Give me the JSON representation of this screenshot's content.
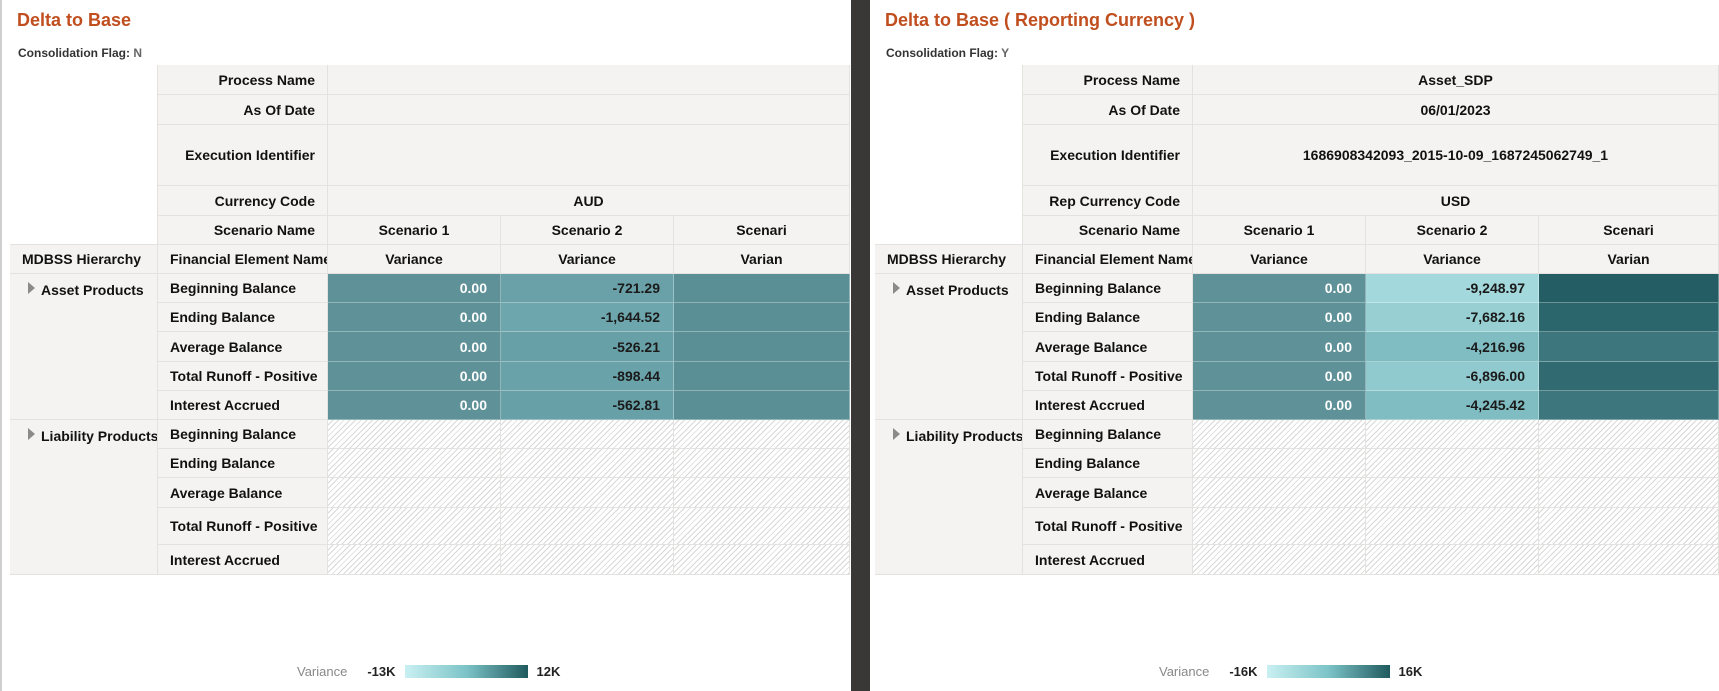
{
  "panels": [
    {
      "title": "Delta to Base",
      "flag_label": "Consolidation Flag:",
      "flag_value": "N",
      "process_name_label": "Process Name",
      "process_name": "",
      "as_of_date_label": "As Of Date",
      "as_of_date": "",
      "execution_identifier_label": "Execution Identifier",
      "execution_identifier": "",
      "currency_label": "Currency Code",
      "currency": "AUD",
      "scenario_name_label": "Scenario Name",
      "scenarios": [
        "Scenario 1",
        "Scenario 2",
        "Scenari"
      ],
      "hierarchy_header": "MDBSS Hierarchy",
      "financial_element_header": "Financial Element Name",
      "measure_headers": [
        "Variance",
        "Variance",
        "Varian"
      ],
      "groups": [
        {
          "name": "Asset Products",
          "rows": [
            {
              "element": "Beginning Balance",
              "values": [
                "0.00",
                "-721.29",
                ""
              ],
              "colors": [
                "#5e9198",
                "#6aa1a8",
                "#5a8f96"
              ]
            },
            {
              "element": "Ending Balance",
              "values": [
                "0.00",
                "-1,644.52",
                ""
              ],
              "colors": [
                "#5e9198",
                "#6ea6ad",
                "#5a8f96"
              ]
            },
            {
              "element": "Average Balance",
              "values": [
                "0.00",
                "-526.21",
                ""
              ],
              "colors": [
                "#5e9198",
                "#68a0a7",
                "#5a8f96"
              ]
            },
            {
              "element": "Total Runoff - Positive",
              "values": [
                "0.00",
                "-898.44",
                ""
              ],
              "colors": [
                "#5e9198",
                "#6aa2a9",
                "#5a8f96"
              ]
            },
            {
              "element": "Interest Accrued",
              "values": [
                "0.00",
                "-562.81",
                ""
              ],
              "colors": [
                "#5e9198",
                "#68a0a7",
                "#5a8f96"
              ]
            }
          ]
        },
        {
          "name": "Liability Products",
          "rows": [
            {
              "element": "Beginning Balance",
              "values": [
                "",
                "",
                ""
              ]
            },
            {
              "element": "Ending Balance",
              "values": [
                "",
                "",
                ""
              ]
            },
            {
              "element": "Average Balance",
              "values": [
                "",
                "",
                ""
              ]
            },
            {
              "element": "Total Runoff - Positive",
              "values": [
                "",
                "",
                ""
              ]
            },
            {
              "element": "Interest Accrued",
              "values": [
                "",
                "",
                ""
              ]
            }
          ]
        }
      ],
      "legend": {
        "label": "Variance",
        "min": "-13K",
        "max": "12K"
      }
    },
    {
      "title": "Delta to Base ( Reporting Currency )",
      "flag_label": "Consolidation Flag:",
      "flag_value": "Y",
      "process_name_label": "Process Name",
      "process_name": "Asset_SDP",
      "as_of_date_label": "As Of Date",
      "as_of_date": "06/01/2023",
      "execution_identifier_label": "Execution Identifier",
      "execution_identifier": "1686908342093_2015-10-09_1687245062749_1",
      "currency_label": "Rep Currency Code",
      "currency": "USD",
      "scenario_name_label": "Scenario Name",
      "scenarios": [
        "Scenario 1",
        "Scenario 2",
        "Scenari"
      ],
      "hierarchy_header": "MDBSS Hierarchy",
      "financial_element_header": "Financial Element Name",
      "measure_headers": [
        "Variance",
        "Variance",
        "Varian"
      ],
      "groups": [
        {
          "name": "Asset Products",
          "rows": [
            {
              "element": "Beginning Balance",
              "values": [
                "0.00",
                "-9,248.97",
                ""
              ],
              "colors": [
                "#5e9198",
                "#a3d8dc",
                "#245e64"
              ]
            },
            {
              "element": "Ending Balance",
              "values": [
                "0.00",
                "-7,682.16",
                ""
              ],
              "colors": [
                "#5e9198",
                "#97cfd3",
                "#2b666c"
              ]
            },
            {
              "element": "Average Balance",
              "values": [
                "0.00",
                "-4,216.96",
                ""
              ],
              "colors": [
                "#5e9198",
                "#80bdc2",
                "#3d777d"
              ]
            },
            {
              "element": "Total Runoff - Positive",
              "values": [
                "0.00",
                "-6,896.00",
                ""
              ],
              "colors": [
                "#5e9198",
                "#90c9ce",
                "#316b71"
              ]
            },
            {
              "element": "Interest Accrued",
              "values": [
                "0.00",
                "-4,245.42",
                ""
              ],
              "colors": [
                "#5e9198",
                "#80bdc2",
                "#3d777d"
              ]
            }
          ]
        },
        {
          "name": "Liability Products",
          "rows": [
            {
              "element": "Beginning Balance",
              "values": [
                "",
                "",
                ""
              ]
            },
            {
              "element": "Ending Balance",
              "values": [
                "",
                "",
                ""
              ]
            },
            {
              "element": "Average Balance",
              "values": [
                "",
                "",
                ""
              ]
            },
            {
              "element": "Total Runoff - Positive",
              "values": [
                "",
                "",
                ""
              ]
            },
            {
              "element": "Interest Accrued",
              "values": [
                "",
                "",
                ""
              ]
            }
          ]
        }
      ],
      "legend": {
        "label": "Variance",
        "min": "-16K",
        "max": "16K"
      }
    }
  ],
  "colors": {
    "title": "#c04e1e",
    "header_bg": "#f4f3f2",
    "divider": "#3a3836"
  }
}
